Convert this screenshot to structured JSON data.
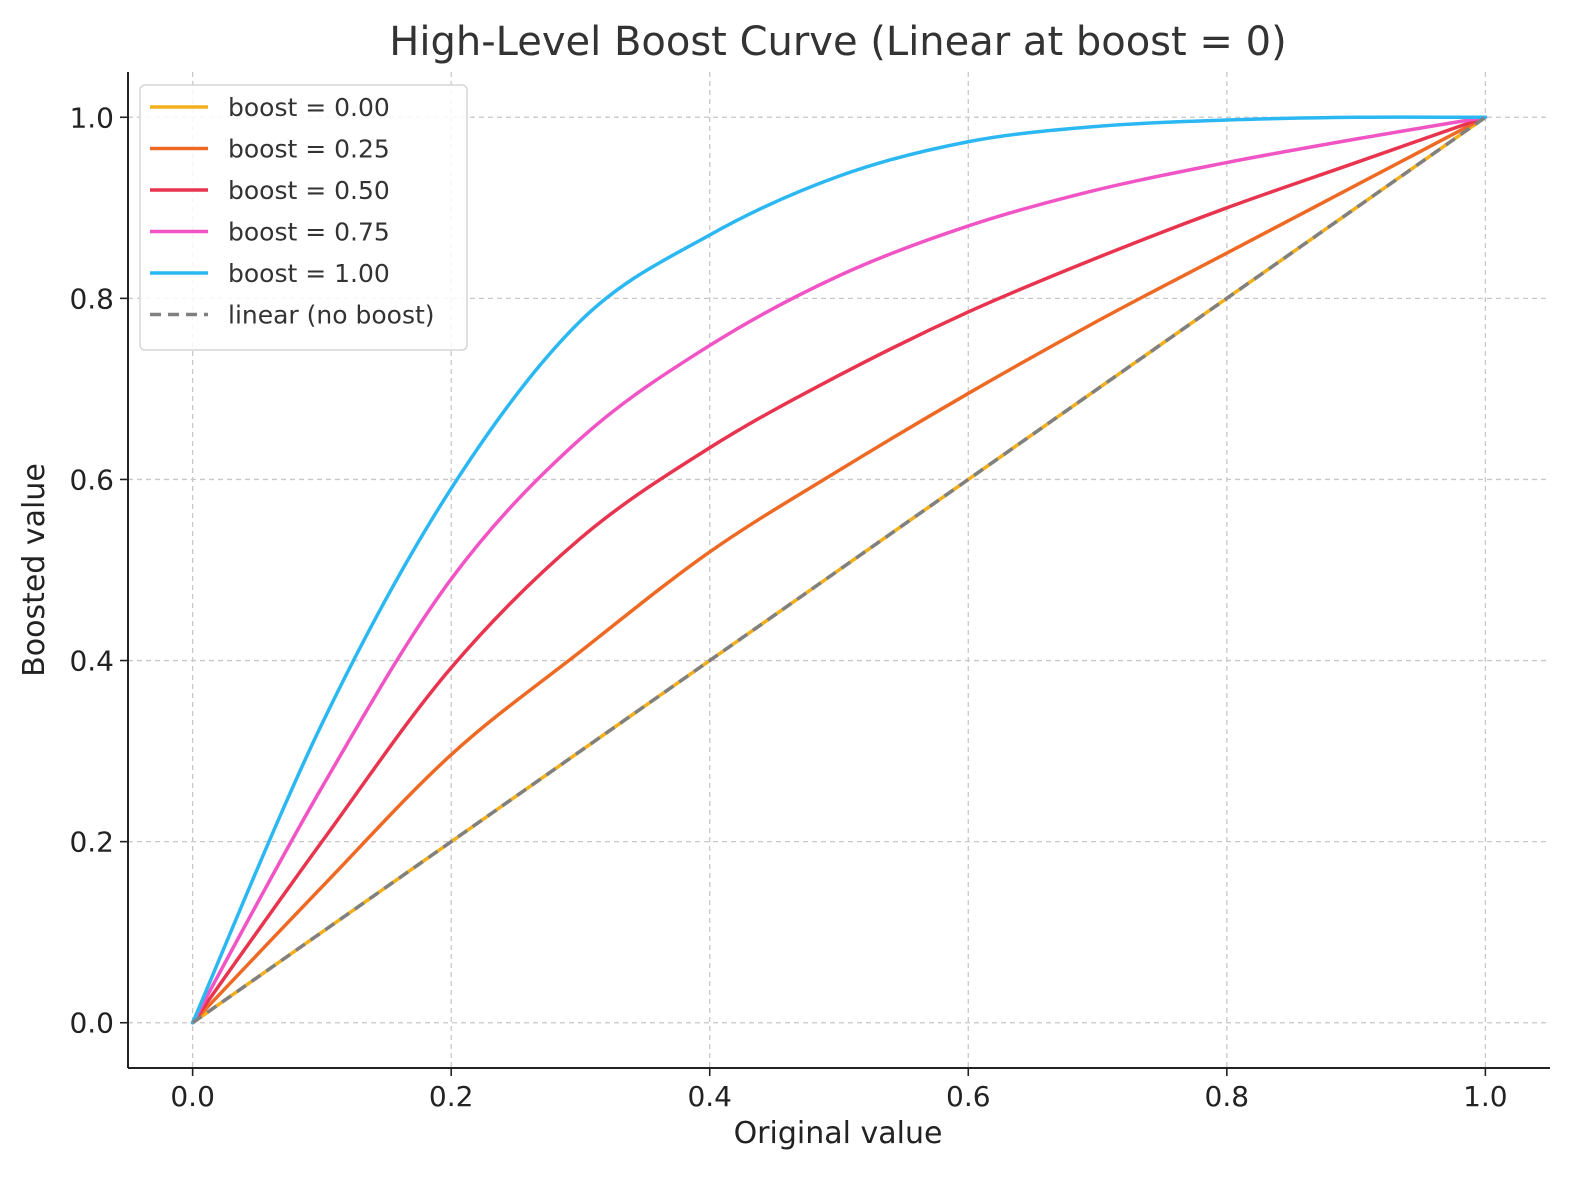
{
  "chart_data": {
    "type": "line",
    "title": "High-Level Boost Curve (Linear at boost = 0)",
    "xlabel": "Original value",
    "ylabel": "Boosted value",
    "xlim": [
      -0.05,
      1.05
    ],
    "ylim": [
      -0.05,
      1.05
    ],
    "xticks": [
      "0.0",
      "0.2",
      "0.4",
      "0.6",
      "0.8",
      "1.0"
    ],
    "yticks": [
      "0.0",
      "0.2",
      "0.4",
      "0.6",
      "0.8",
      "1.0"
    ],
    "grid": true,
    "legend_position": "top-left",
    "x": [
      0.0,
      0.1,
      0.2,
      0.3,
      0.4,
      0.5,
      0.6,
      0.7,
      0.8,
      0.9,
      1.0
    ],
    "series": [
      {
        "name": "boost = 0.00",
        "color": "#F2B01E",
        "style": "solid",
        "values": [
          0.0,
          0.1,
          0.2,
          0.3,
          0.4,
          0.5,
          0.6,
          0.7,
          0.8,
          0.9,
          1.0
        ]
      },
      {
        "name": "boost = 0.25",
        "color": "#EE6A24",
        "style": "solid",
        "values": [
          0.0,
          0.15,
          0.296,
          0.41,
          0.52,
          0.61,
          0.695,
          0.775,
          0.85,
          0.925,
          1.0
        ]
      },
      {
        "name": "boost = 0.50",
        "color": "#E8344E",
        "style": "solid",
        "values": [
          0.0,
          0.2,
          0.392,
          0.535,
          0.635,
          0.715,
          0.785,
          0.845,
          0.9,
          0.95,
          1.0
        ]
      },
      {
        "name": "boost = 0.75",
        "color": "#F154C4",
        "style": "solid",
        "values": [
          0.0,
          0.26,
          0.49,
          0.645,
          0.748,
          0.825,
          0.88,
          0.92,
          0.95,
          0.976,
          1.0
        ]
      },
      {
        "name": "boost = 1.00",
        "color": "#2BB8F2",
        "style": "solid",
        "values": [
          0.0,
          0.33,
          0.59,
          0.775,
          0.87,
          0.935,
          0.973,
          0.99,
          0.997,
          1.0,
          1.0
        ]
      },
      {
        "name": "linear (no boost)",
        "color": "#808080",
        "style": "dashed",
        "values": [
          0.0,
          0.1,
          0.2,
          0.3,
          0.4,
          0.5,
          0.6,
          0.7,
          0.8,
          0.9,
          1.0
        ]
      }
    ]
  }
}
